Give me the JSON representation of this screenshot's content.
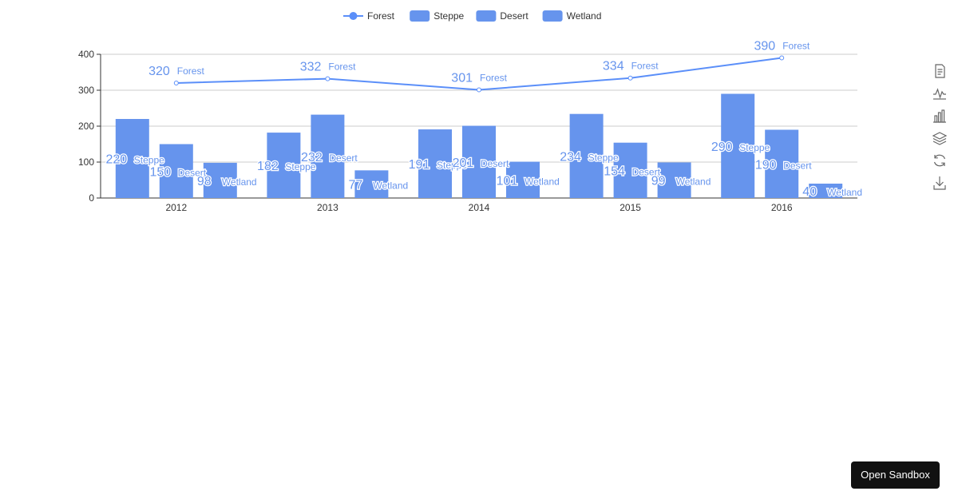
{
  "chart_data": {
    "type": "bar",
    "categories": [
      "2012",
      "2013",
      "2014",
      "2015",
      "2016"
    ],
    "series": [
      {
        "name": "Forest",
        "type": "line",
        "values": [
          320,
          332,
          301,
          334,
          390
        ]
      },
      {
        "name": "Steppe",
        "type": "bar",
        "values": [
          220,
          182,
          191,
          234,
          290
        ]
      },
      {
        "name": "Desert",
        "type": "bar",
        "values": [
          150,
          232,
          201,
          154,
          190
        ]
      },
      {
        "name": "Wetland",
        "type": "bar",
        "values": [
          98,
          77,
          101,
          99,
          40
        ]
      }
    ],
    "ylim": [
      0,
      400
    ],
    "yticks": [
      0,
      100,
      200,
      300,
      400
    ],
    "grid": true,
    "legend_position": "top-center",
    "colors": {
      "series": "#5b8ff9",
      "bar": "#6694ed",
      "axis": "#333333",
      "grid": "#cccccc",
      "label_text": "#6694ed",
      "label_outline": "#ffffff"
    }
  },
  "toolbox": {
    "icons": [
      "data-view-icon",
      "line-chart-icon",
      "bar-chart-icon",
      "stack-icon",
      "restore-icon",
      "download-icon"
    ],
    "color": "#666666"
  },
  "sandbox_button": {
    "label": "Open Sandbox"
  }
}
